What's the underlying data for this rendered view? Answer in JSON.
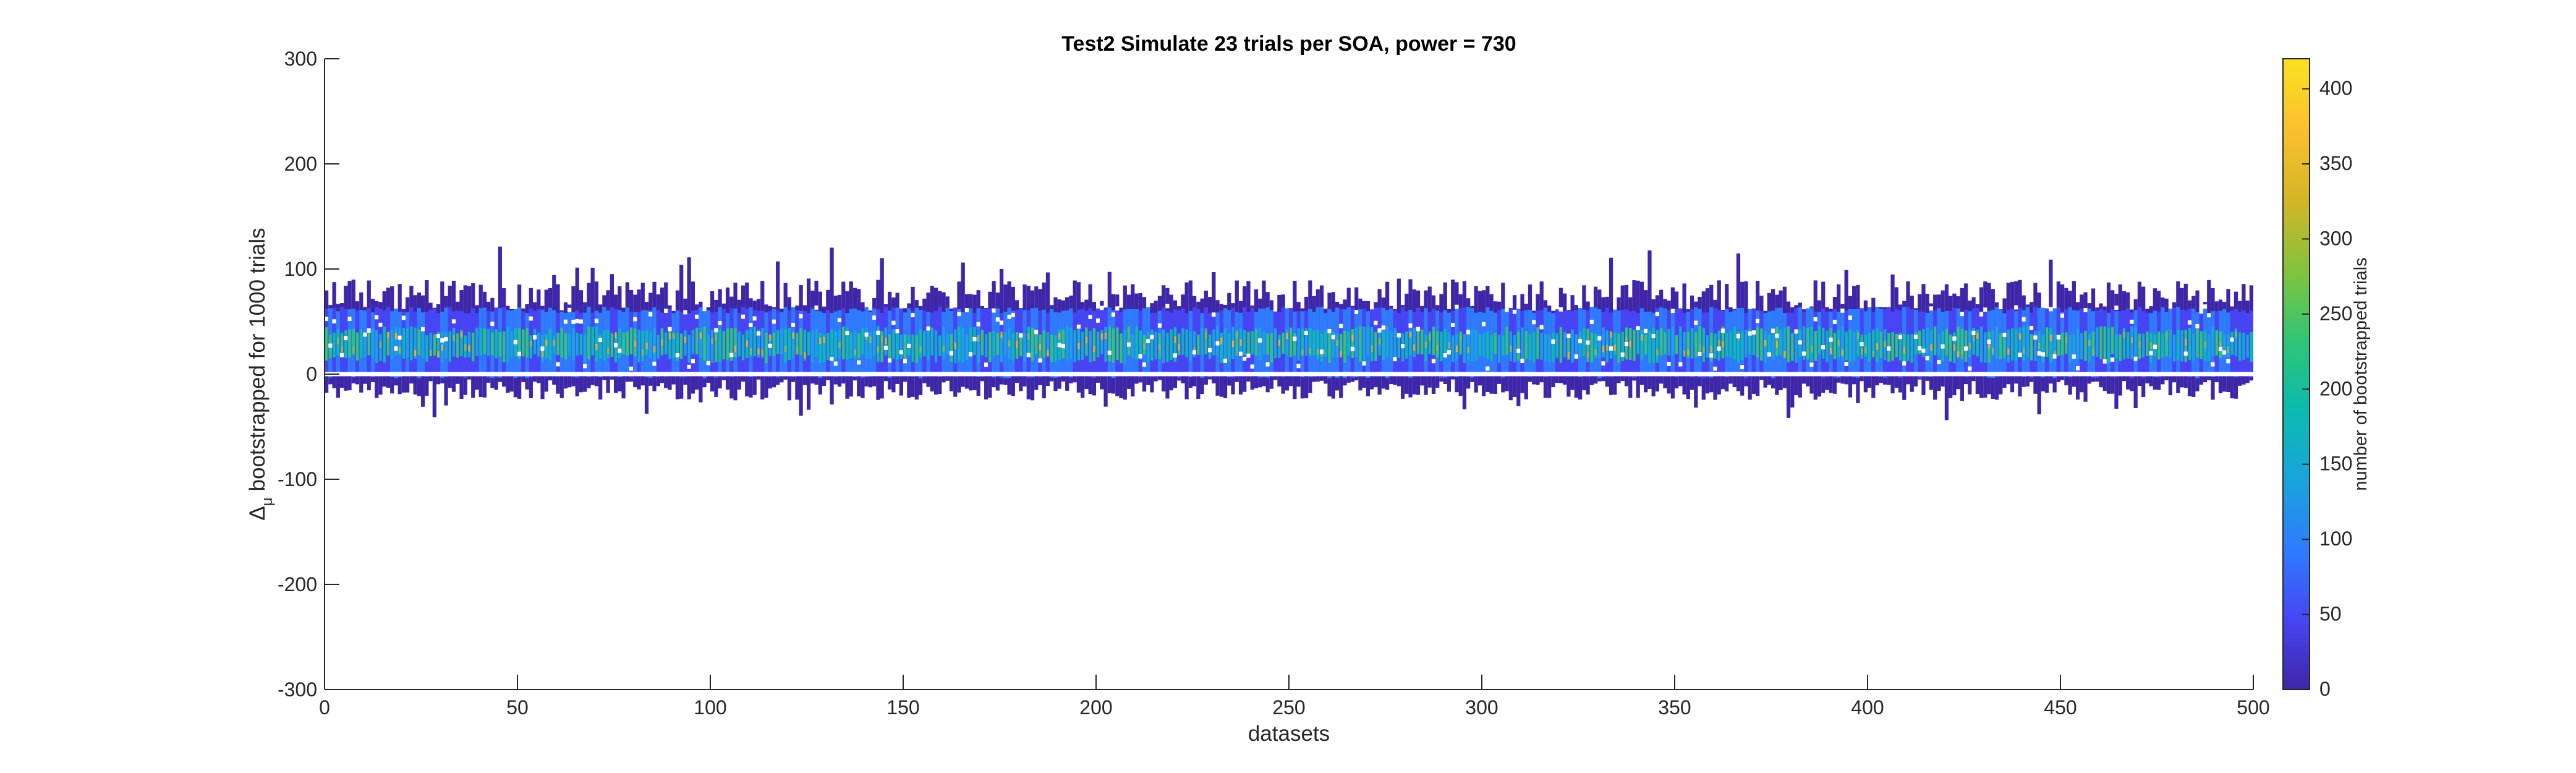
{
  "chart_data": {
    "type": "heatmap",
    "title": "Test2 Simulate 23 trials per SOA, power = 730",
    "xlabel": "datasets",
    "ylabel_symbol": "Δ",
    "ylabel_subscript": "μ",
    "ylabel_text": "bootstrapped for 1000 trials",
    "xlim": [
      0,
      500
    ],
    "ylim": [
      -300,
      300
    ],
    "xticks": [
      0,
      50,
      100,
      150,
      200,
      250,
      300,
      350,
      400,
      450,
      500
    ],
    "yticks": [
      300,
      200,
      100,
      0,
      -100,
      -200,
      -300
    ],
    "n_datasets": 500,
    "band_center": 28,
    "band_core_halfwidth": 22,
    "typical_max": 80,
    "typical_min": -15,
    "extreme_max": 124,
    "extreme_min": -53,
    "colorbar": {
      "label": "number of bootstrapped trials",
      "clim": [
        0,
        420
      ],
      "ticks": [
        0,
        50,
        100,
        150,
        200,
        250,
        300,
        350,
        400
      ],
      "colormap": "parula",
      "colors": [
        "#3e26a8",
        "#4745f3",
        "#2f7bfd",
        "#1aa3dd",
        "#0bbab0",
        "#2ec577",
        "#80c33f",
        "#d7b526",
        "#fbc12f",
        "#f9e121"
      ]
    },
    "colors": {
      "axes": "#262626",
      "background": "#ffffff"
    }
  }
}
